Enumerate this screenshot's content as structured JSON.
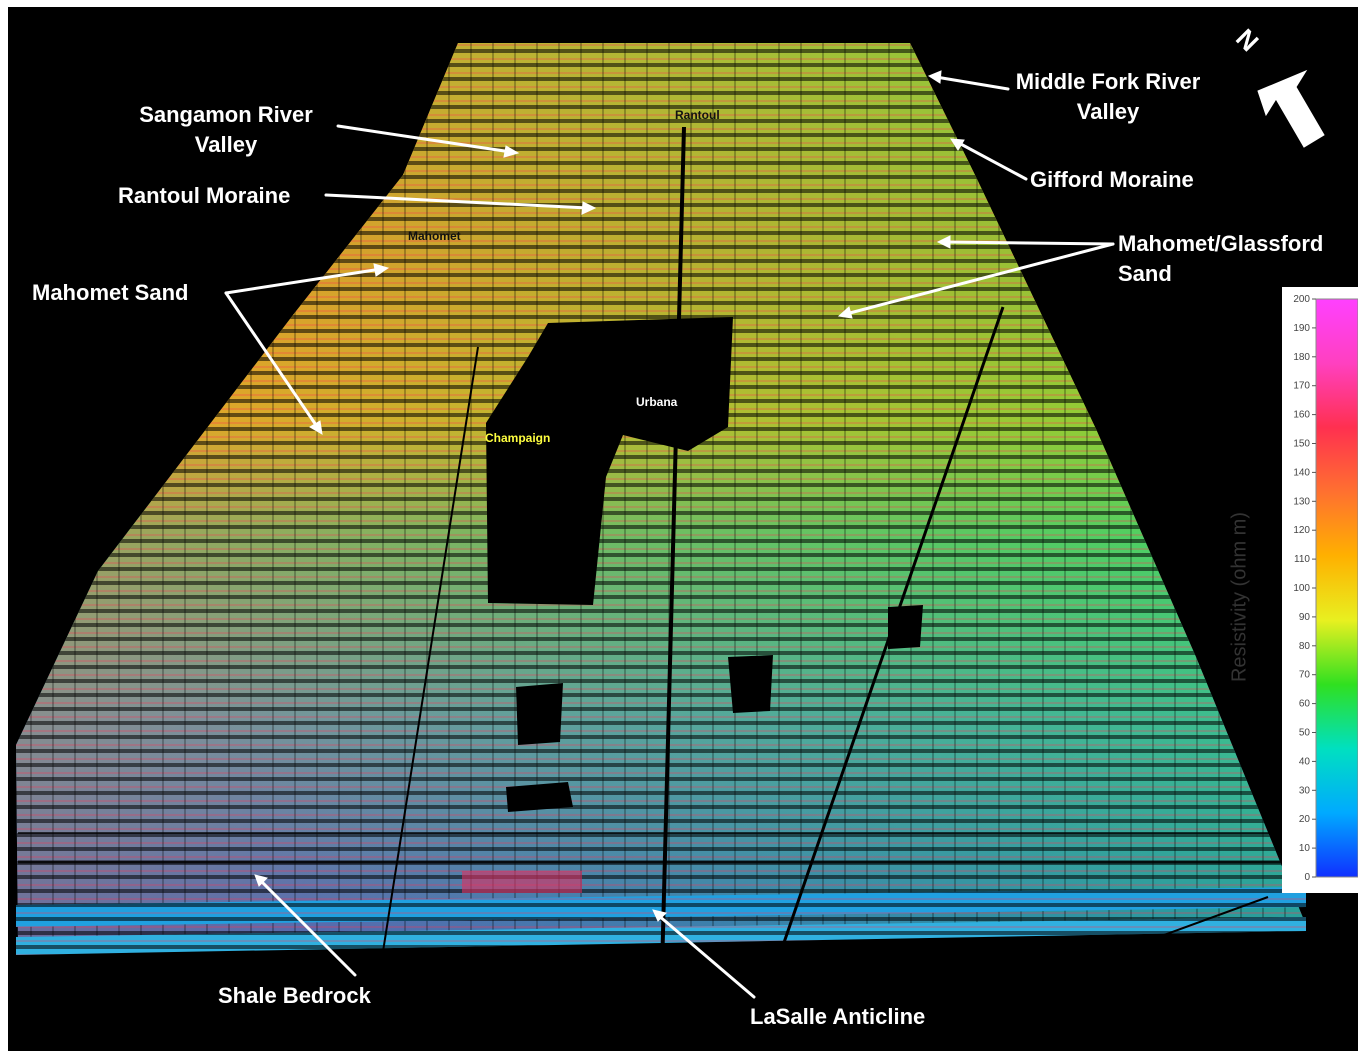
{
  "labels": {
    "sangamon": [
      "Sangamon River",
      "Valley"
    ],
    "rantoul_moraine": "Rantoul  Moraine",
    "mahomet_sand": "Mahomet Sand",
    "middle_fork": [
      "Middle Fork River",
      "Valley"
    ],
    "gifford": "Gifford Moraine",
    "mahomet_glassford": [
      "Mahomet/Glassford",
      "Sand"
    ],
    "shale": "Shale Bedrock",
    "lasalle": "LaSalle Anticline"
  },
  "places": {
    "rantoul": "Rantoul",
    "mahomet": "Mahomet",
    "urbana": "Urbana",
    "champaign": "Champaign"
  },
  "north": "N",
  "colorbar": {
    "title": "Resistivity (ohm m)",
    "min": 0,
    "max": 200,
    "ticks": [
      "0",
      "10",
      "20",
      "30",
      "40",
      "50",
      "60",
      "70",
      "80",
      "90",
      "100",
      "110",
      "120",
      "130",
      "140",
      "150",
      "160",
      "170",
      "180",
      "190",
      "200"
    ],
    "stops": [
      "#1030ff",
      "#00aaff",
      "#00e0c0",
      "#30e020",
      "#e8f020",
      "#ffb000",
      "#ff7030",
      "#ff3050",
      "#ff40c0",
      "#ff40ff"
    ]
  },
  "colors": {
    "background": "#000000",
    "label": "#ffffff",
    "urbana": "#ffffff",
    "champaign": "#ffff40",
    "rantoul": "#111111",
    "mahomet": "#111111"
  }
}
